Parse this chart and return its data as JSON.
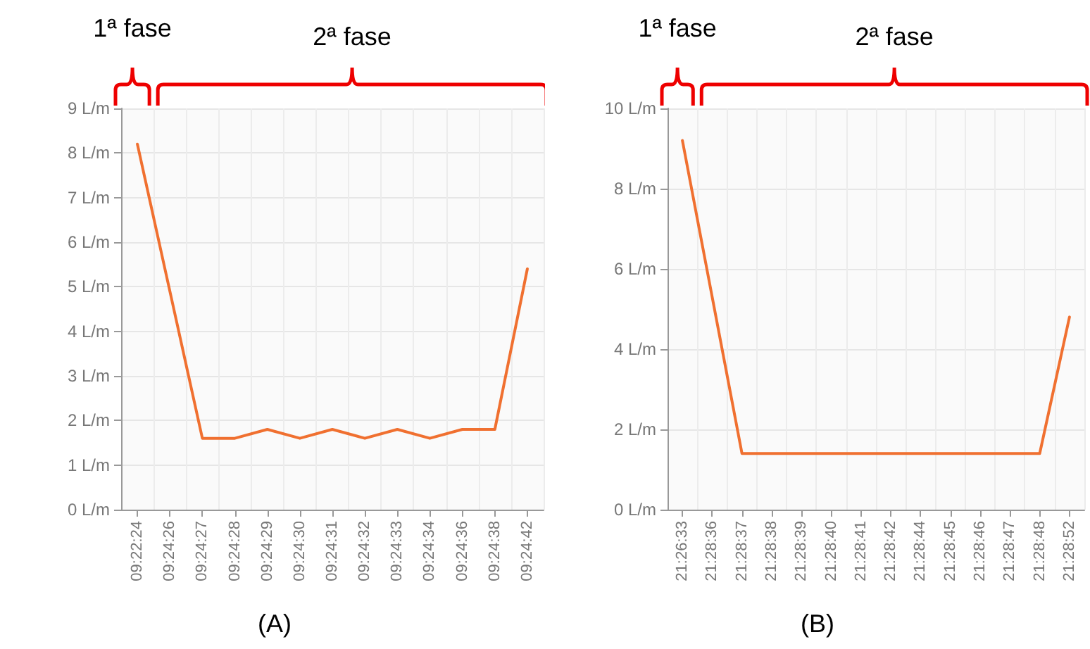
{
  "chart_data": [
    {
      "type": "line",
      "title": "(A)",
      "categories": [
        "09:22:24",
        "09:24:26",
        "09:24:27",
        "09:24:28",
        "09:24:29",
        "09:24:30",
        "09:24:31",
        "09:24:32",
        "09:24:33",
        "09:24:34",
        "09:24:36",
        "09:24:38",
        "09:24:42"
      ],
      "series": [
        {
          "color": "#f07030",
          "values": [
            8.2,
            4.9,
            1.6,
            1.6,
            1.8,
            1.6,
            1.8,
            1.6,
            1.8,
            1.6,
            1.8,
            1.8,
            5.4
          ]
        }
      ],
      "ylim": [
        0,
        9
      ],
      "yticks": [
        {
          "value": 0,
          "label": "0 L/m"
        },
        {
          "value": 1,
          "label": "1 L/m"
        },
        {
          "value": 2,
          "label": "2 L/m"
        },
        {
          "value": 3,
          "label": "3 L/m"
        },
        {
          "value": 4,
          "label": "4 L/m"
        },
        {
          "value": 5,
          "label": "5 L/m"
        },
        {
          "value": 6,
          "label": "6 L/m"
        },
        {
          "value": 7,
          "label": "7 L/m"
        },
        {
          "value": 8,
          "label": "8 L/m"
        },
        {
          "value": 9,
          "label": "9 L/m"
        }
      ],
      "annotations": [
        "1ª fase",
        "2ª fase"
      ],
      "grid": true,
      "marker": "none",
      "line_style": "solid"
    },
    {
      "type": "line",
      "title": "(B)",
      "categories": [
        "21:26:33",
        "21:28:36",
        "21:28:37",
        "21:28:38",
        "21:28:39",
        "21:28:40",
        "21:28:41",
        "21:28:42",
        "21:28:44",
        "21:28:45",
        "21:28:46",
        "21:28:47",
        "21:28:48",
        "21:28:52"
      ],
      "series": [
        {
          "color": "#f07030",
          "values": [
            9.2,
            5.3,
            1.4,
            1.4,
            1.4,
            1.4,
            1.4,
            1.4,
            1.4,
            1.4,
            1.4,
            1.4,
            1.4,
            4.8
          ]
        }
      ],
      "ylim": [
        0,
        10
      ],
      "yticks": [
        {
          "value": 0,
          "label": "0 L/m"
        },
        {
          "value": 2,
          "label": "2 L/m"
        },
        {
          "value": 4,
          "label": "4 L/m"
        },
        {
          "value": 6,
          "label": "6 L/m"
        },
        {
          "value": 8,
          "label": "8 L/m"
        },
        {
          "value": 10,
          "label": "10 L/m"
        }
      ],
      "annotations": [
        "1ª fase",
        "2ª fase"
      ],
      "grid": true,
      "marker": "none",
      "line_style": "solid"
    }
  ]
}
